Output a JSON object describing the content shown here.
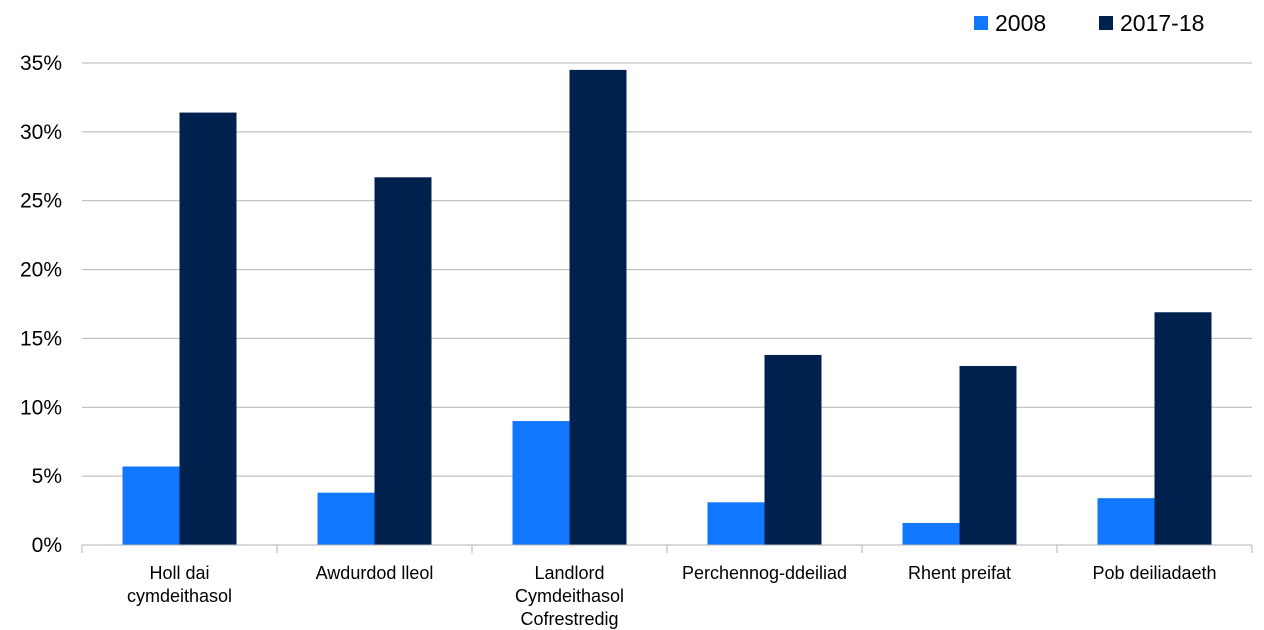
{
  "chart_data": {
    "type": "bar",
    "categories": [
      [
        "Holl dai",
        "cymdeithasol"
      ],
      [
        "Awdurdod lleol"
      ],
      [
        "Landlord",
        "Cymdeithasol",
        "Cofrestredig"
      ],
      [
        "Perchennog-ddeiliad"
      ],
      [
        "Rhent preifat"
      ],
      [
        "Pob deiliadaeth"
      ]
    ],
    "series": [
      {
        "name": "2008",
        "color": "#1177ff",
        "values": [
          5.7,
          3.8,
          9.0,
          3.1,
          1.6,
          3.4
        ]
      },
      {
        "name": "2017-18",
        "color": "#00214d",
        "values": [
          31.4,
          26.7,
          34.5,
          13.8,
          13.0,
          16.9
        ]
      }
    ],
    "ylim": [
      0,
      35
    ],
    "yticks": [
      "0%",
      "5%",
      "10%",
      "15%",
      "20%",
      "25%",
      "30%",
      "35%"
    ],
    "ytick_values": [
      0,
      5,
      10,
      15,
      20,
      25,
      30,
      35
    ],
    "grid": true,
    "legend_position": "top-right",
    "title": "",
    "xlabel": "",
    "ylabel": ""
  }
}
